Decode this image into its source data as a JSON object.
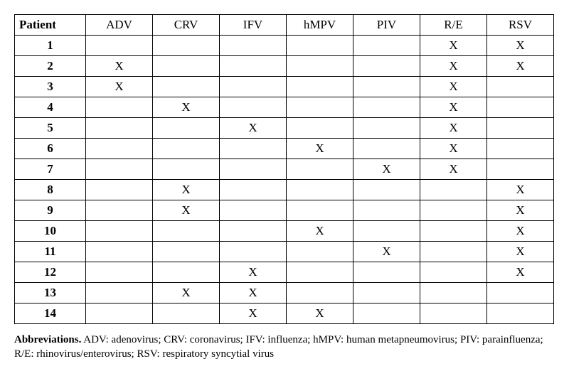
{
  "table": {
    "patient_header": "Patient",
    "columns": [
      "ADV",
      "CRV",
      "IFV",
      "hMPV",
      "PIV",
      "R/E",
      "RSV"
    ],
    "rows": [
      {
        "patient": "1",
        "cells": [
          "",
          "",
          "",
          "",
          "",
          "X",
          "X"
        ]
      },
      {
        "patient": "2",
        "cells": [
          "X",
          "",
          "",
          "",
          "",
          "X",
          "X"
        ]
      },
      {
        "patient": "3",
        "cells": [
          "X",
          "",
          "",
          "",
          "",
          "X",
          ""
        ]
      },
      {
        "patient": "4",
        "cells": [
          "",
          "X",
          "",
          "",
          "",
          "X",
          ""
        ]
      },
      {
        "patient": "5",
        "cells": [
          "",
          "",
          "X",
          "",
          "",
          "X",
          ""
        ]
      },
      {
        "patient": "6",
        "cells": [
          "",
          "",
          "",
          "X",
          "",
          "X",
          ""
        ]
      },
      {
        "patient": "7",
        "cells": [
          "",
          "",
          "",
          "",
          "X",
          "X",
          ""
        ]
      },
      {
        "patient": "8",
        "cells": [
          "",
          "X",
          "",
          "",
          "",
          "",
          "X"
        ]
      },
      {
        "patient": "9",
        "cells": [
          "",
          "X",
          "",
          "",
          "",
          "",
          "X"
        ]
      },
      {
        "patient": "10",
        "cells": [
          "",
          "",
          "",
          "X",
          "",
          "",
          "X"
        ]
      },
      {
        "patient": "11",
        "cells": [
          "",
          "",
          "",
          "",
          "X",
          "",
          "X"
        ]
      },
      {
        "patient": "12",
        "cells": [
          "",
          "",
          "X",
          "",
          "",
          "",
          "X"
        ]
      },
      {
        "patient": "13",
        "cells": [
          "",
          "X",
          "X",
          "",
          "",
          "",
          ""
        ]
      },
      {
        "patient": "14",
        "cells": [
          "",
          "",
          "X",
          "X",
          "",
          "",
          ""
        ]
      }
    ],
    "mark": "X",
    "border_color": "#000000",
    "background_color": "#ffffff",
    "font_size": 17,
    "patient_col_width": 100,
    "data_col_width": 94
  },
  "footnote": {
    "label": "Abbreviations.",
    "text": " ADV: adenovirus; CRV: coronavirus; IFV: influenza; hMPV: human metapneumovirus; PIV: parainfluenza; R/E: rhinovirus/enterovirus; RSV: respiratory syncytial virus",
    "font_size": 15
  }
}
